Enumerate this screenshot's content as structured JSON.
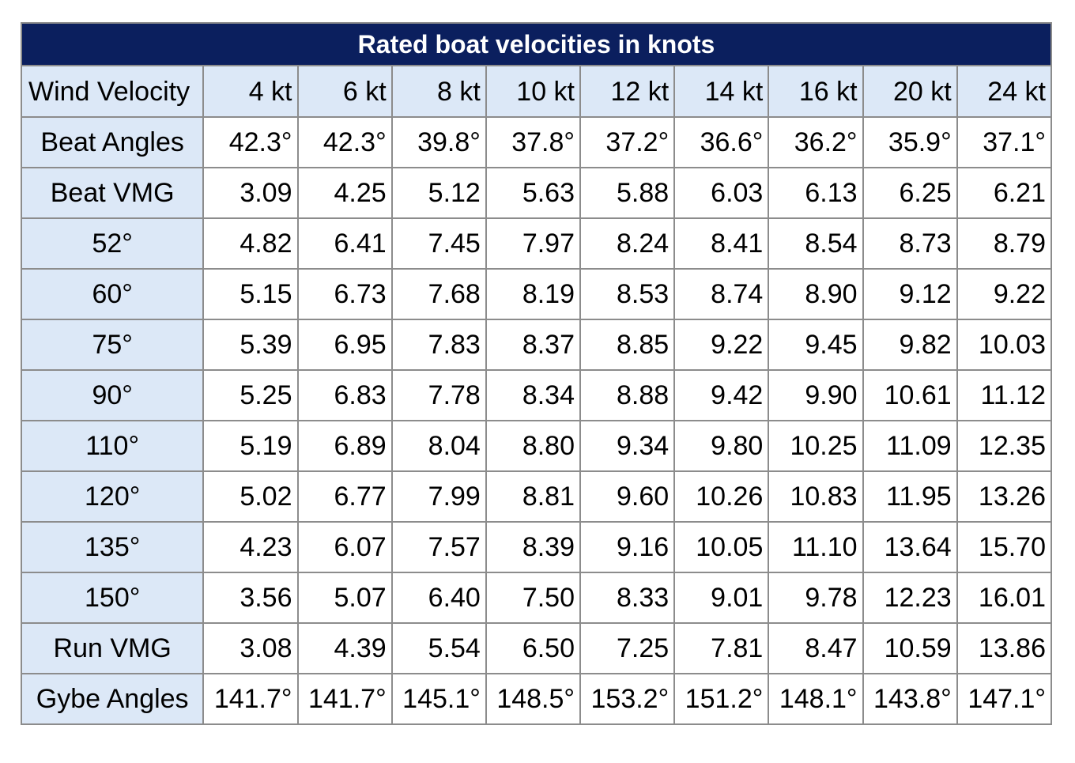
{
  "chart_data": {
    "type": "table",
    "title": "Rated boat velocities in knots",
    "header_label": "Wind Velocity",
    "columns": [
      "4 kt",
      "6 kt",
      "8 kt",
      "10 kt",
      "12 kt",
      "14 kt",
      "16 kt",
      "20 kt",
      "24 kt"
    ],
    "rows": [
      {
        "label": "Beat Angles",
        "values": [
          "42.3°",
          "42.3°",
          "39.8°",
          "37.8°",
          "37.2°",
          "36.6°",
          "36.2°",
          "35.9°",
          "37.1°"
        ]
      },
      {
        "label": "Beat VMG",
        "values": [
          "3.09",
          "4.25",
          "5.12",
          "5.63",
          "5.88",
          "6.03",
          "6.13",
          "6.25",
          "6.21"
        ]
      },
      {
        "label": "52°",
        "values": [
          "4.82",
          "6.41",
          "7.45",
          "7.97",
          "8.24",
          "8.41",
          "8.54",
          "8.73",
          "8.79"
        ]
      },
      {
        "label": "60°",
        "values": [
          "5.15",
          "6.73",
          "7.68",
          "8.19",
          "8.53",
          "8.74",
          "8.90",
          "9.12",
          "9.22"
        ]
      },
      {
        "label": "75°",
        "values": [
          "5.39",
          "6.95",
          "7.83",
          "8.37",
          "8.85",
          "9.22",
          "9.45",
          "9.82",
          "10.03"
        ]
      },
      {
        "label": "90°",
        "values": [
          "5.25",
          "6.83",
          "7.78",
          "8.34",
          "8.88",
          "9.42",
          "9.90",
          "10.61",
          "11.12"
        ]
      },
      {
        "label": "110°",
        "values": [
          "5.19",
          "6.89",
          "8.04",
          "8.80",
          "9.34",
          "9.80",
          "10.25",
          "11.09",
          "12.35"
        ]
      },
      {
        "label": "120°",
        "values": [
          "5.02",
          "6.77",
          "7.99",
          "8.81",
          "9.60",
          "10.26",
          "10.83",
          "11.95",
          "13.26"
        ]
      },
      {
        "label": "135°",
        "values": [
          "4.23",
          "6.07",
          "7.57",
          "8.39",
          "9.16",
          "10.05",
          "11.10",
          "13.64",
          "15.70"
        ]
      },
      {
        "label": "150°",
        "values": [
          "3.56",
          "5.07",
          "6.40",
          "7.50",
          "8.33",
          "9.01",
          "9.78",
          "12.23",
          "16.01"
        ]
      },
      {
        "label": "Run VMG",
        "values": [
          "3.08",
          "4.39",
          "5.54",
          "6.50",
          "7.25",
          "7.81",
          "8.47",
          "10.59",
          "13.86"
        ]
      },
      {
        "label": "Gybe Angles",
        "values": [
          "141.7°",
          "141.7°",
          "145.1°",
          "148.5°",
          "153.2°",
          "151.2°",
          "148.1°",
          "143.8°",
          "147.1°"
        ]
      }
    ],
    "colors": {
      "title_background": "#0b1f5e",
      "title_text": "#ffffff",
      "header_background": "#dce8f7",
      "cell_background": "#ffffff",
      "border": "#8c8c8c"
    }
  }
}
